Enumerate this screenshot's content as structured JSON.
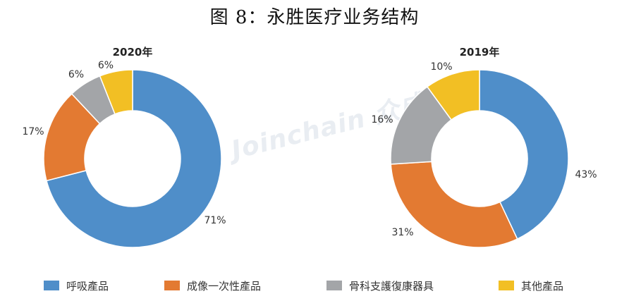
{
  "page": {
    "title": "图 8：永胜医疗业务结构"
  },
  "watermark": {
    "text": "Joinchain 众成"
  },
  "colors": {
    "respiratory": "#4f8ec9",
    "imaging": "#e37a32",
    "orthopedic": "#a3a5a8",
    "other": "#f2bf24"
  },
  "legend": [
    {
      "label": "呼吸產品",
      "color_key": "respiratory"
    },
    {
      "label": "成像一次性產品",
      "color_key": "imaging"
    },
    {
      "label": "骨科支護復康器具",
      "color_key": "orthopedic"
    },
    {
      "label": "其他產品",
      "color_key": "other"
    }
  ],
  "chart_data": [
    {
      "type": "pie",
      "style": "donut",
      "title": "2020年",
      "categories": [
        "呼吸產品",
        "成像一次性產品",
        "骨科支護復康器具",
        "其他產品"
      ],
      "values": [
        71,
        17,
        6,
        6
      ],
      "labels": [
        "71%",
        "17%",
        "6%",
        "6%"
      ],
      "colors": [
        "#4f8ec9",
        "#e37a32",
        "#a3a5a8",
        "#f2bf24"
      ]
    },
    {
      "type": "pie",
      "style": "donut",
      "title": "2019年",
      "categories": [
        "呼吸產品",
        "成像一次性產品",
        "骨科支護復康器具",
        "其他產品"
      ],
      "values": [
        43,
        31,
        16,
        10
      ],
      "labels": [
        "43%",
        "31%",
        "16%",
        "10%"
      ],
      "colors": [
        "#4f8ec9",
        "#e37a32",
        "#a3a5a8",
        "#f2bf24"
      ]
    }
  ]
}
